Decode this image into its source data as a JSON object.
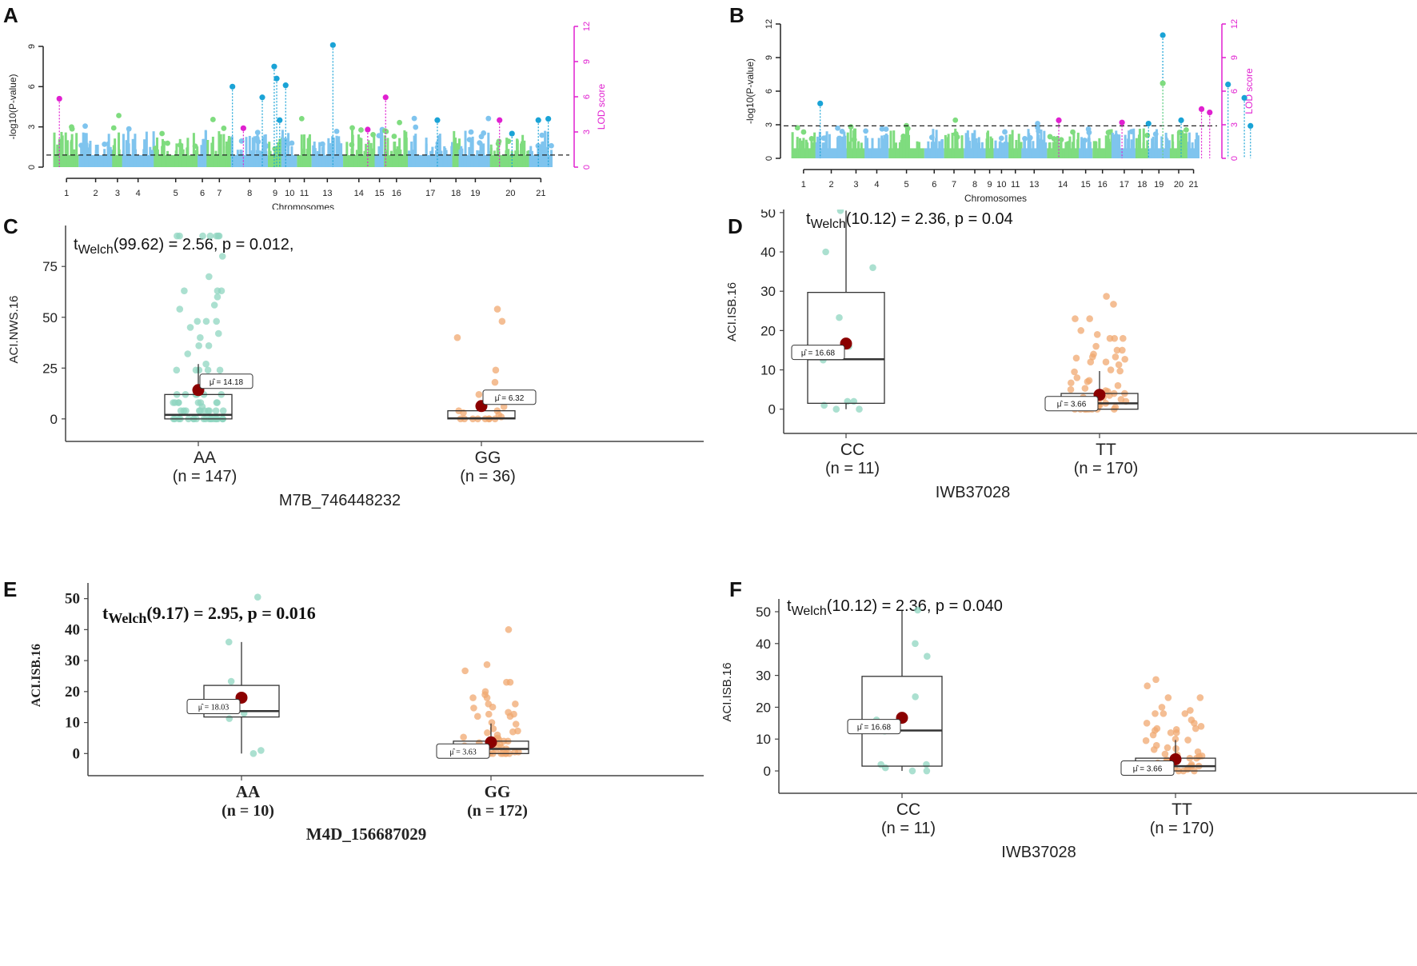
{
  "figure": {
    "panels": [
      "A",
      "B",
      "C",
      "D",
      "E",
      "F"
    ]
  },
  "colors": {
    "chrom_green": "#7fdc7f",
    "chrom_blue": "#7fc4ee",
    "sig_blue": "#1aa3d6",
    "lod_magenta": "#e020d0",
    "aa_teal": "#8fd6c0",
    "gg_orange": "#f0a870",
    "mean_red": "#8b0000",
    "axis": "#333333"
  },
  "chart_data": [
    {
      "id": "A",
      "type": "scatter",
      "subtype": "manhattan",
      "title": "",
      "xlabel": "Chromosomes",
      "ylabel": "-log10(P-value)",
      "y2label": "LOD score",
      "ylim": [
        0,
        9
      ],
      "yticks": [
        0,
        3,
        6,
        9
      ],
      "y2lim": [
        0,
        12
      ],
      "y2ticks": [
        0,
        3,
        6,
        9,
        12
      ],
      "threshold": 0.9,
      "chromosome_labels": [
        "1",
        "2",
        "3",
        "4",
        "5",
        "6",
        "7",
        "8",
        "9",
        "10",
        "11",
        "13",
        "14",
        "15",
        "16",
        "17",
        "18",
        "19",
        "20",
        "21"
      ],
      "chromosome_widths": [
        1.0,
        1.4,
        0.4,
        1.3,
        1.8,
        0.4,
        1.0,
        1.5,
        0.6,
        0.6,
        0.6,
        1.3,
        1.3,
        0.4,
        1.0,
        1.8,
        0.3,
        1.3,
        1.6,
        0.9
      ],
      "peaks": [
        {
          "pos": 0.01,
          "value": 5.1,
          "kind": "lod"
        },
        {
          "pos": 0.358,
          "value": 6.0,
          "kind": "sig"
        },
        {
          "pos": 0.38,
          "value": 2.9,
          "kind": "lod"
        },
        {
          "pos": 0.418,
          "value": 5.2,
          "kind": "sig"
        },
        {
          "pos": 0.442,
          "value": 7.5,
          "kind": "sig"
        },
        {
          "pos": 0.447,
          "value": 6.6,
          "kind": "sig"
        },
        {
          "pos": 0.453,
          "value": 3.5,
          "kind": "sig"
        },
        {
          "pos": 0.465,
          "value": 6.1,
          "kind": "sig"
        },
        {
          "pos": 0.56,
          "value": 9.1,
          "kind": "sig"
        },
        {
          "pos": 0.63,
          "value": 2.8,
          "kind": "lod"
        },
        {
          "pos": 0.666,
          "value": 5.2,
          "kind": "lod"
        },
        {
          "pos": 0.77,
          "value": 3.5,
          "kind": "sig"
        },
        {
          "pos": 0.895,
          "value": 3.5,
          "kind": "lod"
        },
        {
          "pos": 0.92,
          "value": 2.5,
          "kind": "sig"
        },
        {
          "pos": 0.973,
          "value": 3.5,
          "kind": "sig"
        },
        {
          "pos": 0.993,
          "value": 3.6,
          "kind": "sig"
        }
      ]
    },
    {
      "id": "B",
      "type": "scatter",
      "subtype": "manhattan",
      "title": "",
      "xlabel": "Chromosomes",
      "ylabel": "-log10(P-value)",
      "y2label": "LOD score",
      "ylim": [
        0,
        12
      ],
      "yticks": [
        0,
        3,
        6,
        9,
        12
      ],
      "y2lim": [
        0,
        12
      ],
      "y2ticks": [
        0,
        3,
        6,
        9,
        12
      ],
      "threshold": 2.9,
      "chromosome_labels": [
        "1",
        "2",
        "3",
        "4",
        "5",
        "6",
        "7",
        "8",
        "9",
        "10",
        "11",
        "13",
        "14",
        "15",
        "16",
        "17",
        "18",
        "19",
        "20",
        "21"
      ],
      "chromosome_widths": [
        1.2,
        1.6,
        0.9,
        1.2,
        1.8,
        1.0,
        1.0,
        1.1,
        0.4,
        0.8,
        0.6,
        1.3,
        1.6,
        0.7,
        1.0,
        1.2,
        0.6,
        1.1,
        0.9,
        0.6
      ],
      "peaks": [
        {
          "pos": 0.07,
          "value": 4.9,
          "kind": "sig"
        },
        {
          "pos": 0.655,
          "value": 3.4,
          "kind": "lod"
        },
        {
          "pos": 0.81,
          "value": 3.2,
          "kind": "lod"
        },
        {
          "pos": 0.875,
          "value": 3.1,
          "kind": "sig"
        },
        {
          "pos": 0.91,
          "value": 11.0,
          "kind": "sig"
        },
        {
          "pos": 0.91,
          "value": 6.7,
          "kind": "sig-green"
        },
        {
          "pos": 0.955,
          "value": 3.4,
          "kind": "sig"
        },
        {
          "pos": 1.005,
          "value": 4.4,
          "kind": "lod"
        },
        {
          "pos": 1.025,
          "value": 4.1,
          "kind": "lod"
        },
        {
          "pos": 1.07,
          "value": 6.6,
          "kind": "sig"
        },
        {
          "pos": 1.11,
          "value": 5.4,
          "kind": "sig"
        },
        {
          "pos": 1.125,
          "value": 2.9,
          "kind": "sig"
        }
      ]
    },
    {
      "id": "C",
      "type": "scatter",
      "subtype": "boxplot-jitter",
      "title": "tWelch(99.62) = 2.56, p = 0.012,",
      "title_parts": {
        "t": "t",
        "sub": "Welch",
        "rest": "(99.62) = 2.56, p = 0.012,"
      },
      "xlabel": "M7B_746448232",
      "ylabel": "ACI.NWS.16",
      "ylim": [
        -4,
        92
      ],
      "yticks": [
        0,
        25,
        50,
        75
      ],
      "groups": [
        {
          "label": "AA",
          "n_label": "(n = 147)",
          "color": "aa",
          "box": {
            "q1": 0,
            "median": 2,
            "q3": 12,
            "whisker_low": 0,
            "whisker_high": 27
          },
          "mean": 14.18,
          "mean_label": "μ̂ = 14.18",
          "points": [
            90,
            90,
            90,
            90,
            90,
            90,
            90,
            80,
            70,
            63,
            63,
            63,
            60,
            56,
            54,
            48,
            48,
            48,
            45,
            42,
            40,
            36,
            36,
            32,
            27,
            24,
            24,
            24,
            24,
            24,
            12,
            12,
            12,
            12,
            12,
            12,
            8,
            8,
            8,
            8,
            8,
            8,
            8,
            8,
            6,
            4,
            4,
            4,
            4,
            4,
            4,
            4,
            4,
            4,
            4,
            0,
            0,
            0,
            0,
            0,
            0,
            0,
            0,
            0,
            0,
            0,
            0,
            0,
            0,
            0,
            0,
            0,
            0,
            0,
            0
          ]
        },
        {
          "label": "GG",
          "n_label": "(n = 36)",
          "color": "gg",
          "box": {
            "q1": 0,
            "median": 0.3,
            "q3": 4,
            "whisker_low": 0,
            "whisker_high": 4
          },
          "mean": 6.32,
          "mean_label": "μ̂ = 6.32",
          "points": [
            54,
            48,
            40,
            24,
            18,
            12,
            6,
            4,
            4,
            3,
            2,
            1,
            0,
            0,
            0,
            0,
            0,
            0,
            0,
            0
          ]
        }
      ]
    },
    {
      "id": "D",
      "type": "scatter",
      "subtype": "boxplot-jitter",
      "title": "tWelch(10.12) = 2.36, p = 0.04",
      "title_parts": {
        "t": "t",
        "sub": "Welch",
        "rest": "(10.12) = 2.36, p = 0.04"
      },
      "xlabel": "IWB37028",
      "ylabel": "ACI.ISB.16",
      "ylim": [
        -2.5,
        52
      ],
      "yticks": [
        0,
        10,
        20,
        30,
        40,
        50
      ],
      "groups": [
        {
          "label": "CC",
          "n_label": "(n = 11)",
          "color": "aa",
          "box": {
            "q1": 1.5,
            "median": 12.7,
            "q3": 29.7,
            "whisker_low": 0,
            "whisker_high": 50.5
          },
          "mean": 16.68,
          "mean_label": "μ̂ = 16.68",
          "points": [
            50.5,
            40,
            36,
            23.3,
            16,
            12.5,
            2,
            2,
            1,
            0,
            0
          ]
        },
        {
          "label": "TT",
          "n_label": "(n = 170)",
          "color": "gg",
          "box": {
            "q1": 0,
            "median": 1.5,
            "q3": 4,
            "whisker_low": 0,
            "whisker_high": 9.7
          },
          "mean": 3.66,
          "mean_label": "μ̂ = 3.66",
          "points": [
            28.7,
            26.7,
            23,
            23,
            20,
            19,
            18,
            18,
            18,
            16,
            15,
            15,
            14,
            13.3,
            13.3,
            13,
            12.7,
            12,
            12,
            11.3,
            10,
            9.7,
            9.5,
            8,
            7.3,
            7,
            6.7,
            6,
            5.3,
            5,
            4.7,
            4.5,
            4,
            4,
            3.5,
            3,
            3,
            2.5,
            2,
            2,
            2,
            1.5,
            1.5,
            1,
            1,
            1,
            0.5,
            0.5,
            0,
            0,
            0,
            0,
            0,
            0,
            0,
            0
          ]
        }
      ]
    },
    {
      "id": "E",
      "type": "scatter",
      "subtype": "boxplot-jitter",
      "title": "tWelch(9.17) = 2.95, p = 0.016",
      "title_parts": {
        "t": "t",
        "sub": "Welch",
        "rest": "(9.17) = 2.95, p  = 0.016"
      },
      "xlabel": "M4D_156687029",
      "ylabel": "ACI.ISB.16",
      "ylim": [
        -2.5,
        53
      ],
      "yticks": [
        0,
        10,
        20,
        30,
        40,
        50
      ],
      "groups": [
        {
          "label": "AA",
          "n_label": "(n = 10)",
          "color": "aa",
          "box": {
            "q1": 11.8,
            "median": 13.7,
            "q3": 22,
            "whisker_low": 0,
            "whisker_high": 36
          },
          "mean": 18.03,
          "mean_label": "μ̂ = 18.03",
          "points": [
            50.5,
            36,
            23.3,
            18,
            13,
            11.3,
            1,
            0
          ]
        },
        {
          "label": "GG",
          "n_label": "(n = 172)",
          "color": "gg",
          "box": {
            "q1": 0,
            "median": 1.5,
            "q3": 4,
            "whisker_low": 0,
            "whisker_high": 9.7
          },
          "mean": 3.63,
          "mean_label": "μ̂ = 3.63",
          "points": [
            40,
            28.7,
            26.7,
            23,
            23,
            20,
            19,
            18,
            18,
            16,
            16,
            15,
            14.7,
            13.3,
            12.7,
            12.7,
            12,
            12,
            10,
            9.5,
            8,
            7.3,
            7,
            6.7,
            6,
            5.3,
            5,
            4.7,
            4.5,
            4,
            4,
            3.5,
            3,
            3,
            2.5,
            2,
            2,
            1.5,
            1.5,
            1,
            1,
            0.5,
            0.5,
            0,
            0,
            0,
            0,
            0,
            0,
            0,
            0,
            0
          ]
        }
      ]
    },
    {
      "id": "F",
      "type": "scatter",
      "subtype": "boxplot-jitter",
      "title": "tWelch(10.12) = 2.36, p = 0.040",
      "title_parts": {
        "t": "t",
        "sub": "Welch",
        "rest": "(10.12) = 2.36, p = 0.040"
      },
      "xlabel": "IWB37028",
      "ylabel": "ACI.ISB.16",
      "ylim": [
        -2.5,
        52
      ],
      "yticks": [
        0,
        10,
        20,
        30,
        40,
        50
      ],
      "groups": [
        {
          "label": "CC",
          "n_label": "(n = 11)",
          "color": "aa",
          "box": {
            "q1": 1.5,
            "median": 12.7,
            "q3": 29.7,
            "whisker_low": 0,
            "whisker_high": 50.5
          },
          "mean": 16.68,
          "mean_label": "μ̂ = 16.68",
          "points": [
            50.5,
            40,
            36,
            23.3,
            16,
            12.5,
            2,
            2,
            1,
            0,
            0
          ]
        },
        {
          "label": "TT",
          "n_label": "(n = 170)",
          "color": "gg",
          "box": {
            "q1": 0,
            "median": 1.5,
            "q3": 4,
            "whisker_low": 0,
            "whisker_high": 9.7
          },
          "mean": 3.66,
          "mean_label": "μ̂ = 3.66",
          "points": [
            28.7,
            26.7,
            23,
            23,
            20,
            19,
            18,
            18,
            18,
            16,
            15,
            15,
            14,
            13.3,
            13.3,
            13,
            12.7,
            12,
            12,
            11.3,
            10,
            9.7,
            9.5,
            8,
            7.3,
            7,
            6.7,
            6,
            5.3,
            5,
            4.7,
            4.5,
            4,
            4,
            3.5,
            3,
            3,
            2.5,
            2,
            2,
            2,
            1.5,
            1.5,
            1,
            1,
            1,
            0.5,
            0.5,
            0,
            0,
            0,
            0,
            0,
            0,
            0,
            0
          ]
        }
      ]
    }
  ]
}
